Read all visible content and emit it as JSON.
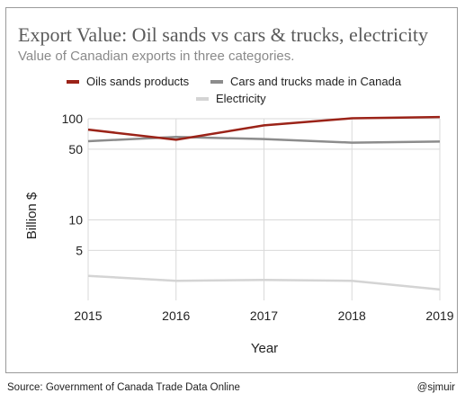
{
  "chart_data": {
    "type": "line",
    "title": "Export Value: Oil sands vs cars & trucks, electricity",
    "subtitle": "Value of Canadian exports in three categories.",
    "xlabel": "Year",
    "ylabel": "Billion $",
    "x": [
      "2015",
      "2016",
      "2017",
      "2018",
      "2019"
    ],
    "yscale": "log",
    "ylim": [
      1.6,
      100
    ],
    "yticks": [
      {
        "value": 100,
        "label": "100"
      },
      {
        "value": 50,
        "label": "50"
      },
      {
        "value": 10,
        "label": "10"
      },
      {
        "value": 5,
        "label": "5"
      }
    ],
    "grid": true,
    "legend_position": "top",
    "series": [
      {
        "name": "Oils sands products",
        "color": "#9b2318",
        "values": [
          78,
          62,
          86,
          101,
          104
        ]
      },
      {
        "name": "Cars and trucks made in Canada",
        "color": "#8c8c8c",
        "values": [
          60,
          66,
          63,
          58,
          59.5
        ]
      },
      {
        "name": "Electricity",
        "color": "#d4d4d4",
        "values": [
          2.8,
          2.5,
          2.55,
          2.5,
          2.05
        ]
      }
    ]
  },
  "footer": {
    "source": "Source: Government of Canada Trade Data Online",
    "credit": "@sjmuir"
  }
}
